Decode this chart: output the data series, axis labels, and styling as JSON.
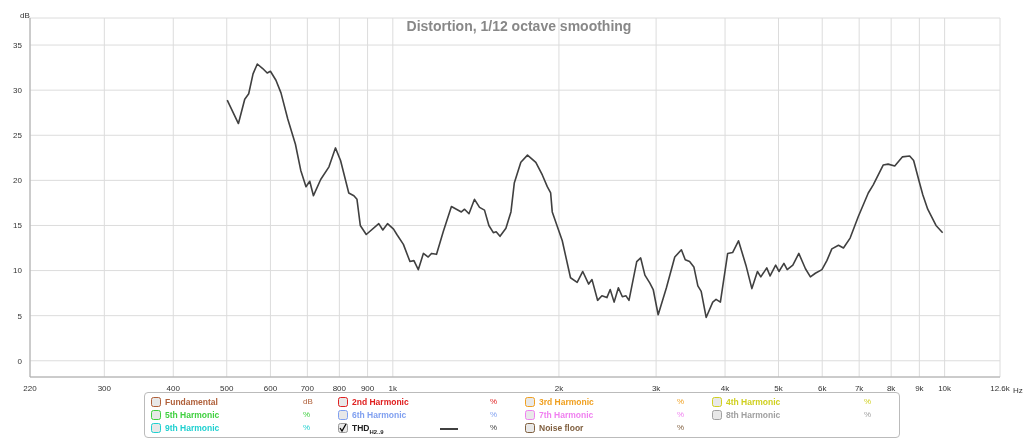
{
  "chart_data": {
    "type": "line",
    "title": "Distortion, 1/12 octave smoothing",
    "ylabel": "dB",
    "xlabel": "Hz",
    "log": "x",
    "grid": true,
    "legend": "bottom",
    "xlim": [
      220,
      12600
    ],
    "ylim": [
      -1.8,
      38
    ],
    "xticks": [
      220,
      300,
      400,
      500,
      600,
      700,
      800,
      900,
      {
        "value": 1000,
        "label": "1k"
      },
      {
        "value": 2000,
        "label": "2k"
      },
      {
        "value": 3000,
        "label": "3k"
      },
      {
        "value": 4000,
        "label": "4k"
      },
      {
        "value": 5000,
        "label": "5k"
      },
      {
        "value": 6000,
        "label": "6k"
      },
      {
        "value": 7000,
        "label": "7k"
      },
      {
        "value": 8000,
        "label": "8k"
      },
      {
        "value": 9000,
        "label": "9k"
      },
      {
        "value": 10000,
        "label": "10k"
      },
      {
        "value": 12600,
        "label": "12.6k"
      }
    ],
    "yticks": [
      0,
      5,
      10,
      15,
      20,
      25,
      30,
      35
    ],
    "x": [
      501,
      525,
      539,
      548,
      558,
      568,
      581,
      592,
      600,
      614,
      627,
      645,
      666,
      681,
      696,
      707,
      718,
      740,
      766,
      787,
      804,
      832,
      850,
      861,
      873,
      895,
      943,
      959,
      978,
      1003,
      1017,
      1045,
      1074,
      1092,
      1112,
      1136,
      1159,
      1175,
      1200,
      1234,
      1277,
      1331,
      1349,
      1374,
      1406,
      1436,
      1466,
      1493,
      1521,
      1539,
      1564,
      1603,
      1637,
      1660,
      1706,
      1754,
      1816,
      1866,
      1905,
      1932,
      1945,
      2028,
      2099,
      2158,
      2209,
      2264,
      2296,
      2350,
      2393,
      2443,
      2477,
      2518,
      2563,
      2606,
      2646,
      2679,
      2767,
      2813,
      2863,
      2923,
      2964,
      3026,
      3132,
      3243,
      3334,
      3388,
      3450,
      3512,
      3571,
      3621,
      3697,
      3800,
      3853,
      3923,
      4044,
      4128,
      4231,
      4364,
      4474,
      4579,
      4644,
      4761,
      4827,
      4941,
      5009,
      5114,
      5185,
      5308,
      5442,
      5595,
      5712,
      5831,
      5993,
      6118,
      6246,
      6422,
      6556,
      6741,
      6976,
      7272,
      7424,
      7738,
      7900,
      8121,
      8381,
      8643,
      8787,
      9008,
      9129,
      9319,
      9647,
      9918
    ],
    "series": [
      {
        "name": "Fundamental",
        "color": "#b0603a",
        "values": [
          null,
          null,
          null,
          null,
          null,
          null,
          null,
          null,
          null,
          null,
          null,
          null,
          null,
          null,
          null,
          null,
          null,
          null,
          null,
          null,
          null,
          null,
          null,
          null,
          null,
          null,
          null,
          null,
          null,
          null,
          null,
          null,
          null,
          null,
          null,
          null,
          null,
          null,
          null,
          null,
          null,
          null,
          null,
          null,
          null,
          null,
          null,
          null,
          null,
          null,
          null,
          null,
          null,
          null,
          null,
          null,
          null,
          null,
          null,
          null,
          null,
          null,
          null,
          null,
          null,
          null,
          null,
          null,
          null,
          null,
          null,
          null,
          null,
          null,
          null,
          null,
          null,
          null,
          null,
          null,
          null,
          null,
          null,
          null,
          null,
          null,
          null,
          null,
          null,
          null,
          null,
          null,
          null,
          null,
          null,
          null,
          null,
          null,
          null,
          null,
          null,
          null,
          null,
          null,
          null,
          null,
          null,
          null,
          null,
          null,
          null,
          null,
          null,
          null,
          null,
          null,
          null,
          null,
          null,
          null,
          null,
          null,
          null,
          null,
          null,
          null,
          null,
          null,
          null,
          null,
          null,
          null
        ]
      },
      {
        "name": "2nd Harmonic",
        "color": "#e02020",
        "values": [
          null,
          null,
          null,
          null,
          null,
          null,
          null,
          null,
          null,
          null,
          null,
          null,
          null,
          null,
          null,
          null,
          null,
          null,
          null,
          null,
          null,
          null,
          null,
          null,
          null,
          null,
          null,
          null,
          null,
          null,
          null,
          null,
          null,
          null,
          null,
          null,
          null,
          null,
          null,
          null,
          null,
          null,
          null,
          null,
          null,
          null,
          null,
          null,
          null,
          null,
          null,
          null,
          null,
          null,
          null,
          null,
          null,
          null,
          null,
          null,
          null,
          null,
          null,
          null,
          null,
          null,
          null,
          null,
          null,
          null,
          null,
          null,
          null,
          null,
          null,
          null,
          null,
          null,
          null,
          null,
          null,
          null,
          null,
          null,
          null,
          null,
          null,
          null,
          null,
          null,
          null,
          null,
          null,
          null,
          null,
          null,
          null,
          null,
          null,
          null,
          null,
          null,
          null,
          null,
          null,
          null,
          null,
          null,
          null,
          null,
          null,
          null,
          null,
          null,
          null,
          null,
          null,
          null,
          null,
          null,
          null,
          null,
          null,
          null,
          null,
          null,
          null,
          null,
          null,
          null,
          null,
          null
        ]
      },
      {
        "name": "3rd Harmonic",
        "color": "#f0a020",
        "values": [
          null,
          null,
          null,
          null,
          null,
          null,
          null,
          null,
          null,
          null,
          null,
          null,
          null,
          null,
          null,
          null,
          null,
          null,
          null,
          null,
          null,
          null,
          null,
          null,
          null,
          null,
          null,
          null,
          null,
          null,
          null,
          null,
          null,
          null,
          null,
          null,
          null,
          null,
          null,
          null,
          null,
          null,
          null,
          null,
          null,
          null,
          null,
          null,
          null,
          null,
          null,
          null,
          null,
          null,
          null,
          null,
          null,
          null,
          null,
          null,
          null,
          null,
          null,
          null,
          null,
          null,
          null,
          null,
          null,
          null,
          null,
          null,
          null,
          null,
          null,
          null,
          null,
          null,
          null,
          null,
          null,
          null,
          null,
          null,
          null,
          null,
          null,
          null,
          null,
          null,
          null,
          null,
          null,
          null,
          null,
          null,
          null,
          null,
          null,
          null,
          null,
          null,
          null,
          null,
          null,
          null,
          null,
          null,
          null,
          null,
          null,
          null,
          null,
          null,
          null,
          null,
          null,
          null,
          null,
          null,
          null,
          null,
          null,
          null,
          null,
          null,
          null,
          null,
          null,
          null,
          null,
          null
        ]
      },
      {
        "name": "4th Harmonic",
        "color": "#d0d020",
        "values": [
          null,
          null,
          null,
          null,
          null,
          null,
          null,
          null,
          null,
          null,
          null,
          null,
          null,
          null,
          null,
          null,
          null,
          null,
          null,
          null,
          null,
          null,
          null,
          null,
          null,
          null,
          null,
          null,
          null,
          null,
          null,
          null,
          null,
          null,
          null,
          null,
          null,
          null,
          null,
          null,
          null,
          null,
          null,
          null,
          null,
          null,
          null,
          null,
          null,
          null,
          null,
          null,
          null,
          null,
          null,
          null,
          null,
          null,
          null,
          null,
          null,
          null,
          null,
          null,
          null,
          null,
          null,
          null,
          null,
          null,
          null,
          null,
          null,
          null,
          null,
          null,
          null,
          null,
          null,
          null,
          null,
          null,
          null,
          null,
          null,
          null,
          null,
          null,
          null,
          null,
          null,
          null,
          null,
          null,
          null,
          null,
          null,
          null,
          null,
          null,
          null,
          null,
          null,
          null,
          null,
          null,
          null,
          null,
          null,
          null,
          null,
          null,
          null,
          null,
          null,
          null,
          null,
          null,
          null,
          null,
          null,
          null,
          null,
          null,
          null,
          null,
          null,
          null,
          null,
          null,
          null,
          null
        ]
      },
      {
        "name": "5th Harmonic",
        "color": "#40d040",
        "values": [
          null,
          null,
          null,
          null,
          null,
          null,
          null,
          null,
          null,
          null,
          null,
          null,
          null,
          null,
          null,
          null,
          null,
          null,
          null,
          null,
          null,
          null,
          null,
          null,
          null,
          null,
          null,
          null,
          null,
          null,
          null,
          null,
          null,
          null,
          null,
          null,
          null,
          null,
          null,
          null,
          null,
          null,
          null,
          null,
          null,
          null,
          null,
          null,
          null,
          null,
          null,
          null,
          null,
          null,
          null,
          null,
          null,
          null,
          null,
          null,
          null,
          null,
          null,
          null,
          null,
          null,
          null,
          null,
          null,
          null,
          null,
          null,
          null,
          null,
          null,
          null,
          null,
          null,
          null,
          null,
          null,
          null,
          null,
          null,
          null,
          null,
          null,
          null,
          null,
          null,
          null,
          null,
          null,
          null,
          null,
          null,
          null,
          null,
          null,
          null,
          null,
          null,
          null,
          null,
          null,
          null,
          null,
          null,
          null,
          null,
          null,
          null,
          null,
          null,
          null,
          null,
          null,
          null,
          null,
          null,
          null,
          null,
          null,
          null,
          null,
          null,
          null,
          null,
          null,
          null,
          null,
          null
        ]
      },
      {
        "name": "6th Harmonic",
        "color": "#80a0f0",
        "values": [
          null,
          null,
          null,
          null,
          null,
          null,
          null,
          null,
          null,
          null,
          null,
          null,
          null,
          null,
          null,
          null,
          null,
          null,
          null,
          null,
          null,
          null,
          null,
          null,
          null,
          null,
          null,
          null,
          null,
          null,
          null,
          null,
          null,
          null,
          null,
          null,
          null,
          null,
          null,
          null,
          null,
          null,
          null,
          null,
          null,
          null,
          null,
          null,
          null,
          null,
          null,
          null,
          null,
          null,
          null,
          null,
          null,
          null,
          null,
          null,
          null,
          null,
          null,
          null,
          null,
          null,
          null,
          null,
          null,
          null,
          null,
          null,
          null,
          null,
          null,
          null,
          null,
          null,
          null,
          null,
          null,
          null,
          null,
          null,
          null,
          null,
          null,
          null,
          null,
          null,
          null,
          null,
          null,
          null,
          null,
          null,
          null,
          null,
          null,
          null,
          null,
          null,
          null,
          null,
          null,
          null,
          null,
          null,
          null,
          null,
          null,
          null,
          null,
          null,
          null,
          null,
          null,
          null,
          null,
          null,
          null,
          null,
          null,
          null,
          null,
          null,
          null,
          null,
          null,
          null,
          null,
          null
        ]
      },
      {
        "name": "7th Harmonic",
        "color": "#f080f0",
        "values": [
          null,
          null,
          null,
          null,
          null,
          null,
          null,
          null,
          null,
          null,
          null,
          null,
          null,
          null,
          null,
          null,
          null,
          null,
          null,
          null,
          null,
          null,
          null,
          null,
          null,
          null,
          null,
          null,
          null,
          null,
          null,
          null,
          null,
          null,
          null,
          null,
          null,
          null,
          null,
          null,
          null,
          null,
          null,
          null,
          null,
          null,
          null,
          null,
          null,
          null,
          null,
          null,
          null,
          null,
          null,
          null,
          null,
          null,
          null,
          null,
          null,
          null,
          null,
          null,
          null,
          null,
          null,
          null,
          null,
          null,
          null,
          null,
          null,
          null,
          null,
          null,
          null,
          null,
          null,
          null,
          null,
          null,
          null,
          null,
          null,
          null,
          null,
          null,
          null,
          null,
          null,
          null,
          null,
          null,
          null,
          null,
          null,
          null,
          null,
          null,
          null,
          null,
          null,
          null,
          null,
          null,
          null,
          null,
          null,
          null,
          null,
          null,
          null,
          null,
          null,
          null,
          null,
          null,
          null,
          null,
          null,
          null,
          null,
          null,
          null,
          null,
          null,
          null,
          null,
          null,
          null,
          null
        ]
      },
      {
        "name": "8th Harmonic",
        "color": "#a0a0a0",
        "values": [
          null,
          null,
          null,
          null,
          null,
          null,
          null,
          null,
          null,
          null,
          null,
          null,
          null,
          null,
          null,
          null,
          null,
          null,
          null,
          null,
          null,
          null,
          null,
          null,
          null,
          null,
          null,
          null,
          null,
          null,
          null,
          null,
          null,
          null,
          null,
          null,
          null,
          null,
          null,
          null,
          null,
          null,
          null,
          null,
          null,
          null,
          null,
          null,
          null,
          null,
          null,
          null,
          null,
          null,
          null,
          null,
          null,
          null,
          null,
          null,
          null,
          null,
          null,
          null,
          null,
          null,
          null,
          null,
          null,
          null,
          null,
          null,
          null,
          null,
          null,
          null,
          null,
          null,
          null,
          null,
          null,
          null,
          null,
          null,
          null,
          null,
          null,
          null,
          null,
          null,
          null,
          null,
          null,
          null,
          null,
          null,
          null,
          null,
          null,
          null,
          null,
          null,
          null,
          null,
          null,
          null,
          null,
          null,
          null,
          null,
          null,
          null,
          null,
          null,
          null,
          null,
          null,
          null,
          null,
          null,
          null,
          null,
          null,
          null,
          null,
          null,
          null,
          null,
          null,
          null,
          null,
          null
        ]
      },
      {
        "name": "9th Harmonic",
        "color": "#20d0d0",
        "values": [
          null,
          null,
          null,
          null,
          null,
          null,
          null,
          null,
          null,
          null,
          null,
          null,
          null,
          null,
          null,
          null,
          null,
          null,
          null,
          null,
          null,
          null,
          null,
          null,
          null,
          null,
          null,
          null,
          null,
          null,
          null,
          null,
          null,
          null,
          null,
          null,
          null,
          null,
          null,
          null,
          null,
          null,
          null,
          null,
          null,
          null,
          null,
          null,
          null,
          null,
          null,
          null,
          null,
          null,
          null,
          null,
          null,
          null,
          null,
          null,
          null,
          null,
          null,
          null,
          null,
          null,
          null,
          null,
          null,
          null,
          null,
          null,
          null,
          null,
          null,
          null,
          null,
          null,
          null,
          null,
          null,
          null,
          null,
          null,
          null,
          null,
          null,
          null,
          null,
          null,
          null,
          null,
          null,
          null,
          null,
          null,
          null,
          null,
          null,
          null,
          null,
          null,
          null,
          null,
          null,
          null,
          null,
          null,
          null,
          null,
          null,
          null,
          null,
          null,
          null,
          null,
          null,
          null,
          null,
          null,
          null,
          null,
          null,
          null,
          null,
          null,
          null,
          null,
          null,
          null,
          null,
          null
        ]
      },
      {
        "name": "THD$_{H2..9}$",
        "color": "#404040",
        "values": [
          28.9,
          26.3,
          29.0,
          29.6,
          31.8,
          32.9,
          32.4,
          31.9,
          32.1,
          31.1,
          29.7,
          26.8,
          24.0,
          21.1,
          19.3,
          19.9,
          18.3,
          20.1,
          21.5,
          23.6,
          22.2,
          18.6,
          18.3,
          17.9,
          15.0,
          14.0,
          15.2,
          14.5,
          15.2,
          14.6,
          14.0,
          12.9,
          11.0,
          11.1,
          10.1,
          11.9,
          11.5,
          11.9,
          11.8,
          14.3,
          17.1,
          16.5,
          16.8,
          16.3,
          17.9,
          17.0,
          16.7,
          15.0,
          14.2,
          14.3,
          13.8,
          14.7,
          16.5,
          19.7,
          22.0,
          22.8,
          22.0,
          20.6,
          19.3,
          18.6,
          16.5,
          13.3,
          9.2,
          8.7,
          9.9,
          8.5,
          9.0,
          6.7,
          7.2,
          7.0,
          7.9,
          6.5,
          8.1,
          7.1,
          7.2,
          6.7,
          11.0,
          11.4,
          9.5,
          8.6,
          7.9,
          5.1,
          8.1,
          11.5,
          12.3,
          11.2,
          11.0,
          10.4,
          8.3,
          7.7,
          4.8,
          6.5,
          6.8,
          6.5,
          11.9,
          12.0,
          13.3,
          10.6,
          8.0,
          9.9,
          9.3,
          10.3,
          9.4,
          10.6,
          9.9,
          10.8,
          10.1,
          10.6,
          11.9,
          10.2,
          9.3,
          9.7,
          10.1,
          11.1,
          12.4,
          12.8,
          12.5,
          13.6,
          16.0,
          18.6,
          19.5,
          21.7,
          21.8,
          21.6,
          22.6,
          22.7,
          22.2,
          19.7,
          18.4,
          16.8,
          15.0,
          14.2
        ]
      },
      {
        "name": "Noise floor",
        "color": "#806040",
        "values": [
          null,
          null,
          null,
          null,
          null,
          null,
          null,
          null,
          null,
          null,
          null,
          null,
          null,
          null,
          null,
          null,
          null,
          null,
          null,
          null,
          null,
          null,
          null,
          null,
          null,
          null,
          null,
          null,
          null,
          null,
          null,
          null,
          null,
          null,
          null,
          null,
          null,
          null,
          null,
          null,
          null,
          null,
          null,
          null,
          null,
          null,
          null,
          null,
          null,
          null,
          null,
          null,
          null,
          null,
          null,
          null,
          null,
          null,
          null,
          null,
          null,
          null,
          null,
          null,
          null,
          null,
          null,
          null,
          null,
          null,
          null,
          null,
          null,
          null,
          null,
          null,
          null,
          null,
          null,
          null,
          null,
          null,
          null,
          null,
          null,
          null,
          null,
          null,
          null,
          null,
          null,
          null,
          null,
          null,
          null,
          null,
          null,
          null,
          null,
          null,
          null,
          null,
          null,
          null,
          null,
          null,
          null,
          null,
          null,
          null,
          null,
          null,
          null,
          null,
          null,
          null,
          null,
          null,
          null,
          null,
          null,
          null,
          null,
          null,
          null,
          null,
          null,
          null,
          null,
          null,
          null,
          null
        ]
      }
    ],
    "annotations": [
      "dB",
      "%",
      "%",
      "%",
      "%",
      "%",
      "%",
      "%",
      "%",
      "%",
      "%"
    ]
  }
}
